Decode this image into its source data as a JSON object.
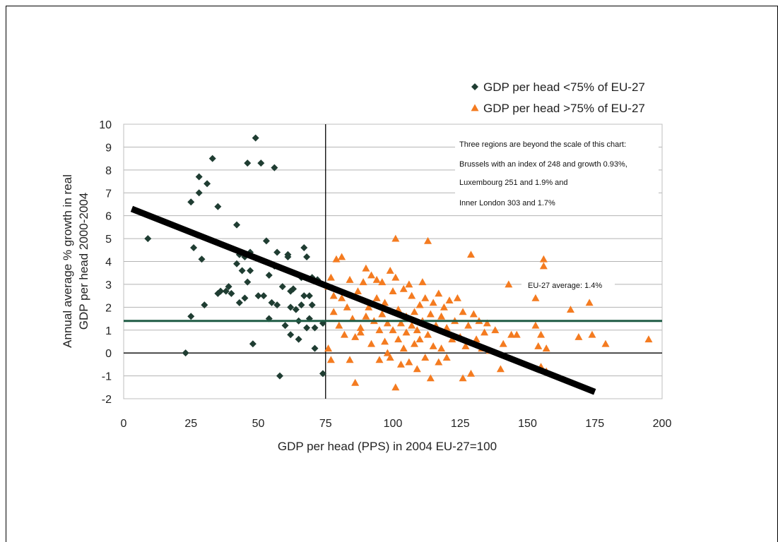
{
  "chart_data": {
    "type": "scatter",
    "xlabel": "GDP per head (PPS) in 2004 EU-27=100",
    "ylabel_lines": [
      "Annual average % growth in real",
      "GDP per head 2000-2004"
    ],
    "xlim": [
      0,
      200
    ],
    "ylim": [
      -2,
      10
    ],
    "x_ticks": [
      0,
      25,
      50,
      75,
      100,
      125,
      150,
      175,
      200
    ],
    "y_ticks": [
      -2,
      -1,
      0,
      1,
      2,
      3,
      4,
      5,
      6,
      7,
      8,
      9,
      10
    ],
    "grid": "horizontal",
    "legend_position": "top-right",
    "threshold_x": 75,
    "eu_average": {
      "value": 1.4,
      "label": "EU-27 average: 1.4%"
    },
    "trend_line": {
      "x": [
        3,
        175
      ],
      "y": [
        6.3,
        -1.7
      ]
    },
    "note_lines": [
      "Three regions are beyond the scale of this chart:",
      "Brussels with an index of 248 and growth 0.93%,",
      "Luxembourg 251 and 1.9% and",
      "Inner London 303 and 1.7%"
    ],
    "series": [
      {
        "name": "GDP per head <75% of EU-27",
        "marker": "diamond",
        "color": "#1f3d32",
        "points": [
          [
            9,
            5.0
          ],
          [
            23,
            0.0
          ],
          [
            25,
            6.6
          ],
          [
            25,
            1.6
          ],
          [
            26,
            4.6
          ],
          [
            28,
            7.7
          ],
          [
            28,
            7.0
          ],
          [
            29,
            4.1
          ],
          [
            30,
            2.1
          ],
          [
            31,
            7.4
          ],
          [
            33,
            8.5
          ],
          [
            35,
            6.4
          ],
          [
            35,
            2.6
          ],
          [
            36,
            2.7
          ],
          [
            38,
            2.7
          ],
          [
            39,
            2.9
          ],
          [
            40,
            2.6
          ],
          [
            42,
            5.6
          ],
          [
            42,
            3.9
          ],
          [
            43,
            2.2
          ],
          [
            43,
            4.3
          ],
          [
            44,
            3.6
          ],
          [
            45,
            4.2
          ],
          [
            45,
            2.4
          ],
          [
            46,
            3.1
          ],
          [
            46,
            8.3
          ],
          [
            47,
            3.6
          ],
          [
            47,
            4.4
          ],
          [
            48,
            0.4
          ],
          [
            49,
            9.4
          ],
          [
            50,
            2.5
          ],
          [
            51,
            8.3
          ],
          [
            52,
            2.5
          ],
          [
            53,
            4.9
          ],
          [
            54,
            1.5
          ],
          [
            54,
            3.4
          ],
          [
            55,
            2.2
          ],
          [
            56,
            8.1
          ],
          [
            57,
            2.1
          ],
          [
            57,
            4.4
          ],
          [
            58,
            -1.0
          ],
          [
            59,
            2.9
          ],
          [
            60,
            1.2
          ],
          [
            61,
            4.3
          ],
          [
            61,
            4.2
          ],
          [
            62,
            2.7
          ],
          [
            62,
            2.0
          ],
          [
            63,
            2.8
          ],
          [
            64,
            1.9
          ],
          [
            65,
            0.6
          ],
          [
            66,
            2.1
          ],
          [
            66,
            3.3
          ],
          [
            67,
            4.6
          ],
          [
            67,
            2.5
          ],
          [
            68,
            4.2
          ],
          [
            68,
            1.1
          ],
          [
            69,
            1.5
          ],
          [
            69,
            2.5
          ],
          [
            70,
            2.1
          ],
          [
            70,
            3.3
          ],
          [
            71,
            1.1
          ],
          [
            71,
            0.2
          ],
          [
            72,
            3.2
          ],
          [
            74,
            -0.9
          ],
          [
            74,
            1.3
          ],
          [
            65,
            1.4
          ],
          [
            56,
            3.8
          ],
          [
            62,
            0.8
          ]
        ]
      },
      {
        "name": "GDP per head >75% of EU-27",
        "marker": "triangle",
        "color": "#f47b20",
        "points": [
          [
            76,
            2.9
          ],
          [
            76,
            0.2
          ],
          [
            77,
            3.3
          ],
          [
            77,
            -0.3
          ],
          [
            78,
            2.5
          ],
          [
            78,
            1.8
          ],
          [
            79,
            4.1
          ],
          [
            80,
            1.2
          ],
          [
            81,
            4.2
          ],
          [
            81,
            2.4
          ],
          [
            82,
            0.8
          ],
          [
            83,
            2.0
          ],
          [
            84,
            3.2
          ],
          [
            84,
            -0.3
          ],
          [
            85,
            1.5
          ],
          [
            86,
            -1.3
          ],
          [
            86,
            0.7
          ],
          [
            87,
            2.7
          ],
          [
            88,
            1.1
          ],
          [
            88,
            0.9
          ],
          [
            89,
            3.1
          ],
          [
            90,
            3.7
          ],
          [
            90,
            1.6
          ],
          [
            91,
            2.0
          ],
          [
            92,
            3.4
          ],
          [
            92,
            0.4
          ],
          [
            93,
            1.4
          ],
          [
            94,
            2.4
          ],
          [
            94,
            3.2
          ],
          [
            95,
            1.0
          ],
          [
            95,
            -0.3
          ],
          [
            96,
            3.1
          ],
          [
            96,
            1.7
          ],
          [
            97,
            0.5
          ],
          [
            97,
            2.2
          ],
          [
            98,
            0.0
          ],
          [
            98,
            1.3
          ],
          [
            99,
            3.6
          ],
          [
            99,
            -0.2
          ],
          [
            100,
            1.0
          ],
          [
            100,
            2.7
          ],
          [
            101,
            5.0
          ],
          [
            101,
            3.3
          ],
          [
            101,
            -1.5
          ],
          [
            102,
            0.6
          ],
          [
            102,
            1.9
          ],
          [
            103,
            1.3
          ],
          [
            103,
            -0.5
          ],
          [
            104,
            0.2
          ],
          [
            104,
            2.8
          ],
          [
            105,
            1.6
          ],
          [
            105,
            0.9
          ],
          [
            106,
            3.0
          ],
          [
            106,
            -0.4
          ],
          [
            107,
            1.2
          ],
          [
            107,
            2.5
          ],
          [
            108,
            0.4
          ],
          [
            108,
            1.8
          ],
          [
            109,
            -0.7
          ],
          [
            109,
            1.0
          ],
          [
            110,
            2.1
          ],
          [
            110,
            0.6
          ],
          [
            111,
            3.1
          ],
          [
            111,
            1.4
          ],
          [
            112,
            -0.2
          ],
          [
            112,
            2.4
          ],
          [
            113,
            4.9
          ],
          [
            113,
            0.8
          ],
          [
            114,
            1.7
          ],
          [
            114,
            -1.1
          ],
          [
            115,
            2.2
          ],
          [
            115,
            0.3
          ],
          [
            116,
            1.2
          ],
          [
            117,
            2.6
          ],
          [
            117,
            -0.4
          ],
          [
            118,
            1.6
          ],
          [
            118,
            0.2
          ],
          [
            119,
            2.0
          ],
          [
            120,
            1.1
          ],
          [
            120,
            -0.2
          ],
          [
            121,
            2.3
          ],
          [
            122,
            0.6
          ],
          [
            123,
            1.4
          ],
          [
            124,
            2.4
          ],
          [
            125,
            0.7
          ],
          [
            126,
            -1.1
          ],
          [
            126,
            1.8
          ],
          [
            127,
            0.3
          ],
          [
            128,
            1.2
          ],
          [
            129,
            4.3
          ],
          [
            129,
            -0.9
          ],
          [
            130,
            1.7
          ],
          [
            131,
            0.6
          ],
          [
            132,
            1.4
          ],
          [
            133,
            0.2
          ],
          [
            134,
            0.9
          ],
          [
            135,
            1.3
          ],
          [
            136,
            0.1
          ],
          [
            138,
            1.0
          ],
          [
            140,
            -0.7
          ],
          [
            141,
            0.4
          ],
          [
            143,
            3.0
          ],
          [
            144,
            0.8
          ],
          [
            146,
            0.8
          ],
          [
            153,
            2.4
          ],
          [
            153,
            1.2
          ],
          [
            154,
            0.3
          ],
          [
            155,
            0.8
          ],
          [
            155,
            -0.6
          ],
          [
            156,
            4.1
          ],
          [
            156,
            3.8
          ],
          [
            157,
            0.2
          ],
          [
            157,
            -0.8
          ],
          [
            166,
            1.9
          ],
          [
            169,
            0.7
          ],
          [
            173,
            2.2
          ],
          [
            174,
            0.8
          ],
          [
            179,
            0.4
          ],
          [
            195,
            0.6
          ]
        ]
      }
    ]
  }
}
